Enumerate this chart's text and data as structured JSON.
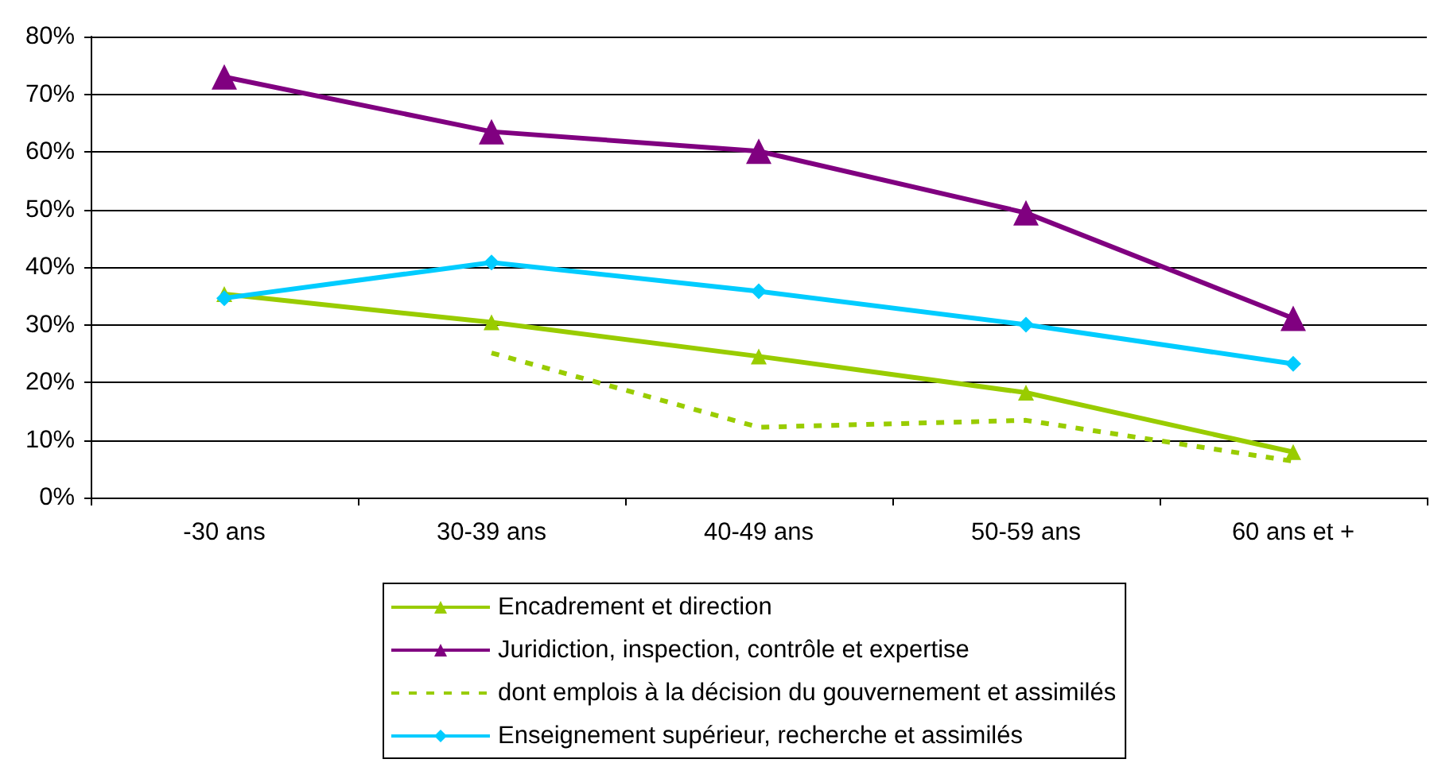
{
  "chart_data": {
    "type": "line",
    "categories": [
      "-30 ans",
      "30-39 ans",
      "40-49 ans",
      "50-59 ans",
      "60 ans et +"
    ],
    "series": [
      {
        "name": "Encadrement et direction",
        "color": "#99cc00",
        "marker": "triangle",
        "line_style": "solid",
        "values": [
          35.3,
          30.4,
          24.5,
          18.2,
          7.9
        ]
      },
      {
        "name": "Juridiction, inspection, contrôle et expertise",
        "color": "#800080",
        "marker": "triangle",
        "line_style": "solid",
        "values": [
          73,
          63.5,
          60.1,
          49.4,
          31.1
        ]
      },
      {
        "name": "dont emplois à la décision du gouvernement et assimilés",
        "color": "#99cc00",
        "marker": "none",
        "line_style": "dashed",
        "values": [
          null,
          25.1,
          12.2,
          13.4,
          6.3
        ]
      },
      {
        "name": "Enseignement supérieur, recherche et assimilés",
        "color": "#00ccff",
        "marker": "diamond",
        "line_style": "solid",
        "values": [
          34.6,
          40.8,
          35.8,
          30.0,
          23.2
        ]
      }
    ],
    "ylim": [
      0,
      80
    ],
    "yticks": [
      {
        "value": 0,
        "label": "0%"
      },
      {
        "value": 10,
        "label": "10%"
      },
      {
        "value": 20,
        "label": "20%"
      },
      {
        "value": 30,
        "label": "30%"
      },
      {
        "value": 40,
        "label": "40%"
      },
      {
        "value": 50,
        "label": "50%"
      },
      {
        "value": 60,
        "label": "60%"
      },
      {
        "value": 70,
        "label": "70%"
      },
      {
        "value": 80,
        "label": "80%"
      }
    ],
    "grid": "y",
    "legend": "bottom"
  }
}
